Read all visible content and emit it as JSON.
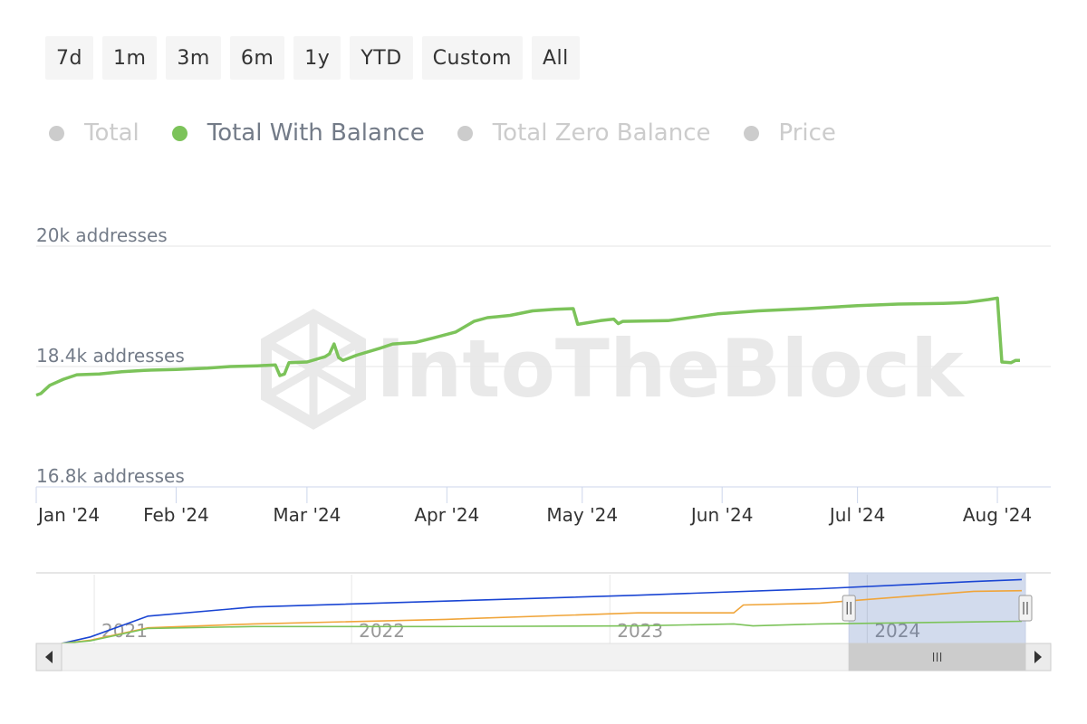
{
  "range_buttons": [
    "7d",
    "1m",
    "3m",
    "6m",
    "1y",
    "YTD",
    "Custom",
    "All"
  ],
  "legend": [
    {
      "label": "Total",
      "color": "#cccccc",
      "active": false
    },
    {
      "label": "Total With Balance",
      "color": "#7cc35a",
      "active": true
    },
    {
      "label": "Total Zero Balance",
      "color": "#cccccc",
      "active": false
    },
    {
      "label": "Price",
      "color": "#cccccc",
      "active": false
    }
  ],
  "watermark": "IntoTheBlock",
  "chart_data": {
    "type": "line",
    "yaxis": {
      "min": 16800,
      "max": 20000,
      "ticks": [
        {
          "value": 20000,
          "label": "20k addresses"
        },
        {
          "value": 18400,
          "label": "18.4k addresses"
        },
        {
          "value": 16800,
          "label": "16.8k addresses"
        }
      ]
    },
    "xaxis": {
      "start": "2024-01-01",
      "end": "2024-08-04",
      "ticks": [
        {
          "date": "2024-01-01",
          "label": "Jan '24"
        },
        {
          "date": "2024-02-01",
          "label": "Feb '24"
        },
        {
          "date": "2024-03-01",
          "label": "Mar '24"
        },
        {
          "date": "2024-04-01",
          "label": "Apr '24"
        },
        {
          "date": "2024-05-01",
          "label": "May '24"
        },
        {
          "date": "2024-06-01",
          "label": "Jun '24"
        },
        {
          "date": "2024-07-01",
          "label": "Jul '24"
        },
        {
          "date": "2024-08-01",
          "label": "Aug '24"
        }
      ]
    },
    "series": [
      {
        "name": "Total With Balance",
        "color": "#7cc35a",
        "points": [
          [
            "2024-01-01",
            18020
          ],
          [
            "2024-01-02",
            18040
          ],
          [
            "2024-01-04",
            18150
          ],
          [
            "2024-01-07",
            18230
          ],
          [
            "2024-01-10",
            18290
          ],
          [
            "2024-01-15",
            18300
          ],
          [
            "2024-01-20",
            18330
          ],
          [
            "2024-01-25",
            18350
          ],
          [
            "2024-02-01",
            18360
          ],
          [
            "2024-02-08",
            18380
          ],
          [
            "2024-02-13",
            18400
          ],
          [
            "2024-02-19",
            18410
          ],
          [
            "2024-02-23",
            18420
          ],
          [
            "2024-02-24",
            18280
          ],
          [
            "2024-02-25",
            18300
          ],
          [
            "2024-02-26",
            18450
          ],
          [
            "2024-03-01",
            18460
          ],
          [
            "2024-03-05",
            18530
          ],
          [
            "2024-03-06",
            18570
          ],
          [
            "2024-03-07",
            18700
          ],
          [
            "2024-03-08",
            18520
          ],
          [
            "2024-03-09",
            18480
          ],
          [
            "2024-03-12",
            18550
          ],
          [
            "2024-03-17",
            18640
          ],
          [
            "2024-03-20",
            18700
          ],
          [
            "2024-03-25",
            18720
          ],
          [
            "2024-03-29",
            18780
          ],
          [
            "2024-04-03",
            18860
          ],
          [
            "2024-04-07",
            19000
          ],
          [
            "2024-04-10",
            19050
          ],
          [
            "2024-04-15",
            19080
          ],
          [
            "2024-04-20",
            19140
          ],
          [
            "2024-04-25",
            19160
          ],
          [
            "2024-04-29",
            19170
          ],
          [
            "2024-04-30",
            18960
          ],
          [
            "2024-05-05",
            19010
          ],
          [
            "2024-05-08",
            19030
          ],
          [
            "2024-05-09",
            18970
          ],
          [
            "2024-05-10",
            19000
          ],
          [
            "2024-05-20",
            19010
          ],
          [
            "2024-05-31",
            19100
          ],
          [
            "2024-06-09",
            19140
          ],
          [
            "2024-06-20",
            19170
          ],
          [
            "2024-07-01",
            19210
          ],
          [
            "2024-07-10",
            19230
          ],
          [
            "2024-07-20",
            19240
          ],
          [
            "2024-07-25",
            19250
          ],
          [
            "2024-07-30",
            19290
          ],
          [
            "2024-08-01",
            19310
          ],
          [
            "2024-08-02",
            18460
          ],
          [
            "2024-08-04",
            18450
          ],
          [
            "2024-08-05",
            18480
          ],
          [
            "2024-08-06",
            18480
          ]
        ]
      }
    ]
  },
  "navigator": {
    "year_labels": [
      "2021",
      "2022",
      "2023",
      "2024"
    ],
    "series": [
      {
        "name": "Total",
        "color": "#1a45d3",
        "points": [
          [
            0,
            0
          ],
          [
            0.03,
            0.1
          ],
          [
            0.09,
            0.42
          ],
          [
            0.2,
            0.56
          ],
          [
            0.4,
            0.65
          ],
          [
            0.6,
            0.74
          ],
          [
            0.79,
            0.84
          ],
          [
            0.95,
            0.95
          ],
          [
            1.0,
            0.98
          ]
        ]
      },
      {
        "name": "Total Zero Balance",
        "color": "#f0a53a",
        "points": [
          [
            0,
            0
          ],
          [
            0.03,
            0.05
          ],
          [
            0.09,
            0.24
          ],
          [
            0.2,
            0.3
          ],
          [
            0.4,
            0.37
          ],
          [
            0.6,
            0.47
          ],
          [
            0.7,
            0.47
          ],
          [
            0.71,
            0.59
          ],
          [
            0.79,
            0.62
          ],
          [
            0.95,
            0.8
          ],
          [
            1.0,
            0.81
          ]
        ]
      },
      {
        "name": "Total With Balance",
        "color": "#7cc35a",
        "points": [
          [
            0,
            0
          ],
          [
            0.03,
            0.04
          ],
          [
            0.09,
            0.23
          ],
          [
            0.2,
            0.26
          ],
          [
            0.4,
            0.26
          ],
          [
            0.6,
            0.27
          ],
          [
            0.7,
            0.3
          ],
          [
            0.72,
            0.27
          ],
          [
            0.79,
            0.3
          ],
          [
            0.95,
            0.33
          ],
          [
            1.0,
            0.34
          ]
        ]
      }
    ],
    "selection": {
      "from": 0.82,
      "to": 1.0
    }
  }
}
